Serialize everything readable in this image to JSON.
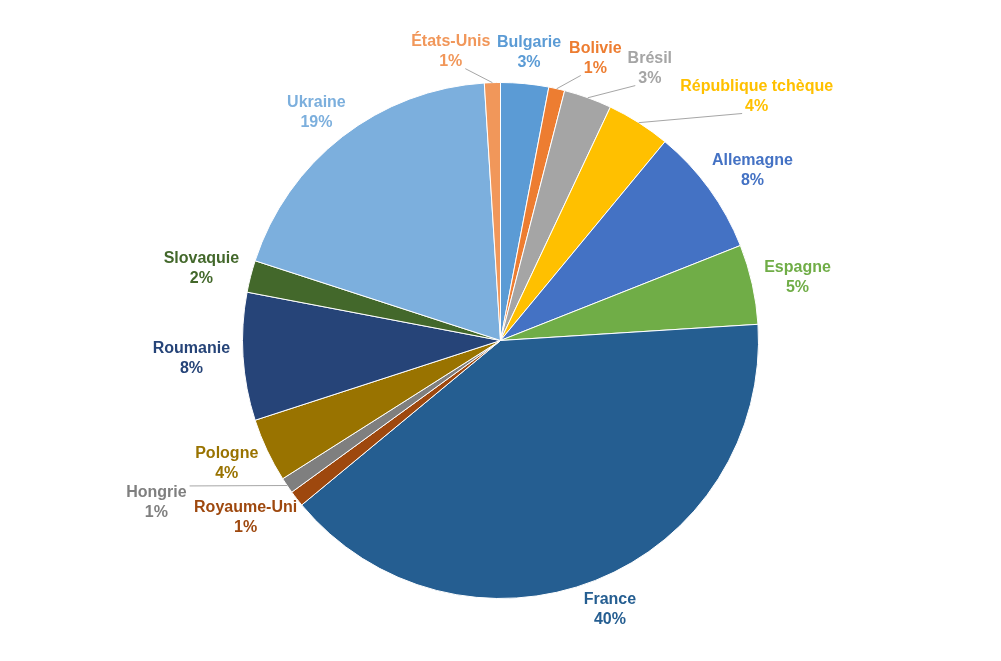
{
  "chart_data": {
    "type": "pie",
    "categories": [
      "Bulgarie",
      "Bolivie",
      "Brésil",
      "République tchèque",
      "Allemagne",
      "Espagne",
      "France",
      "Royaume-Uni",
      "Hongrie",
      "Pologne",
      "Roumanie",
      "Slovaquie",
      "Ukraine",
      "États-Unis"
    ],
    "values": [
      3,
      1,
      3,
      4,
      8,
      5,
      40,
      1,
      1,
      4,
      8,
      2,
      19,
      1
    ],
    "value_labels": [
      "3%",
      "1%",
      "3%",
      "4%",
      "8%",
      "5%",
      "40%",
      "1%",
      "1%",
      "4%",
      "8%",
      "2%",
      "19%",
      "1%"
    ],
    "colors": [
      "#5b9bd5",
      "#ed7d31",
      "#a5a5a5",
      "#ffc000",
      "#4472c4",
      "#70ad47",
      "#255e91",
      "#9e480e",
      "#7f7f7f",
      "#997300",
      "#264478",
      "#43682b",
      "#7cafdd",
      "#f1975a"
    ],
    "legend": false
  }
}
